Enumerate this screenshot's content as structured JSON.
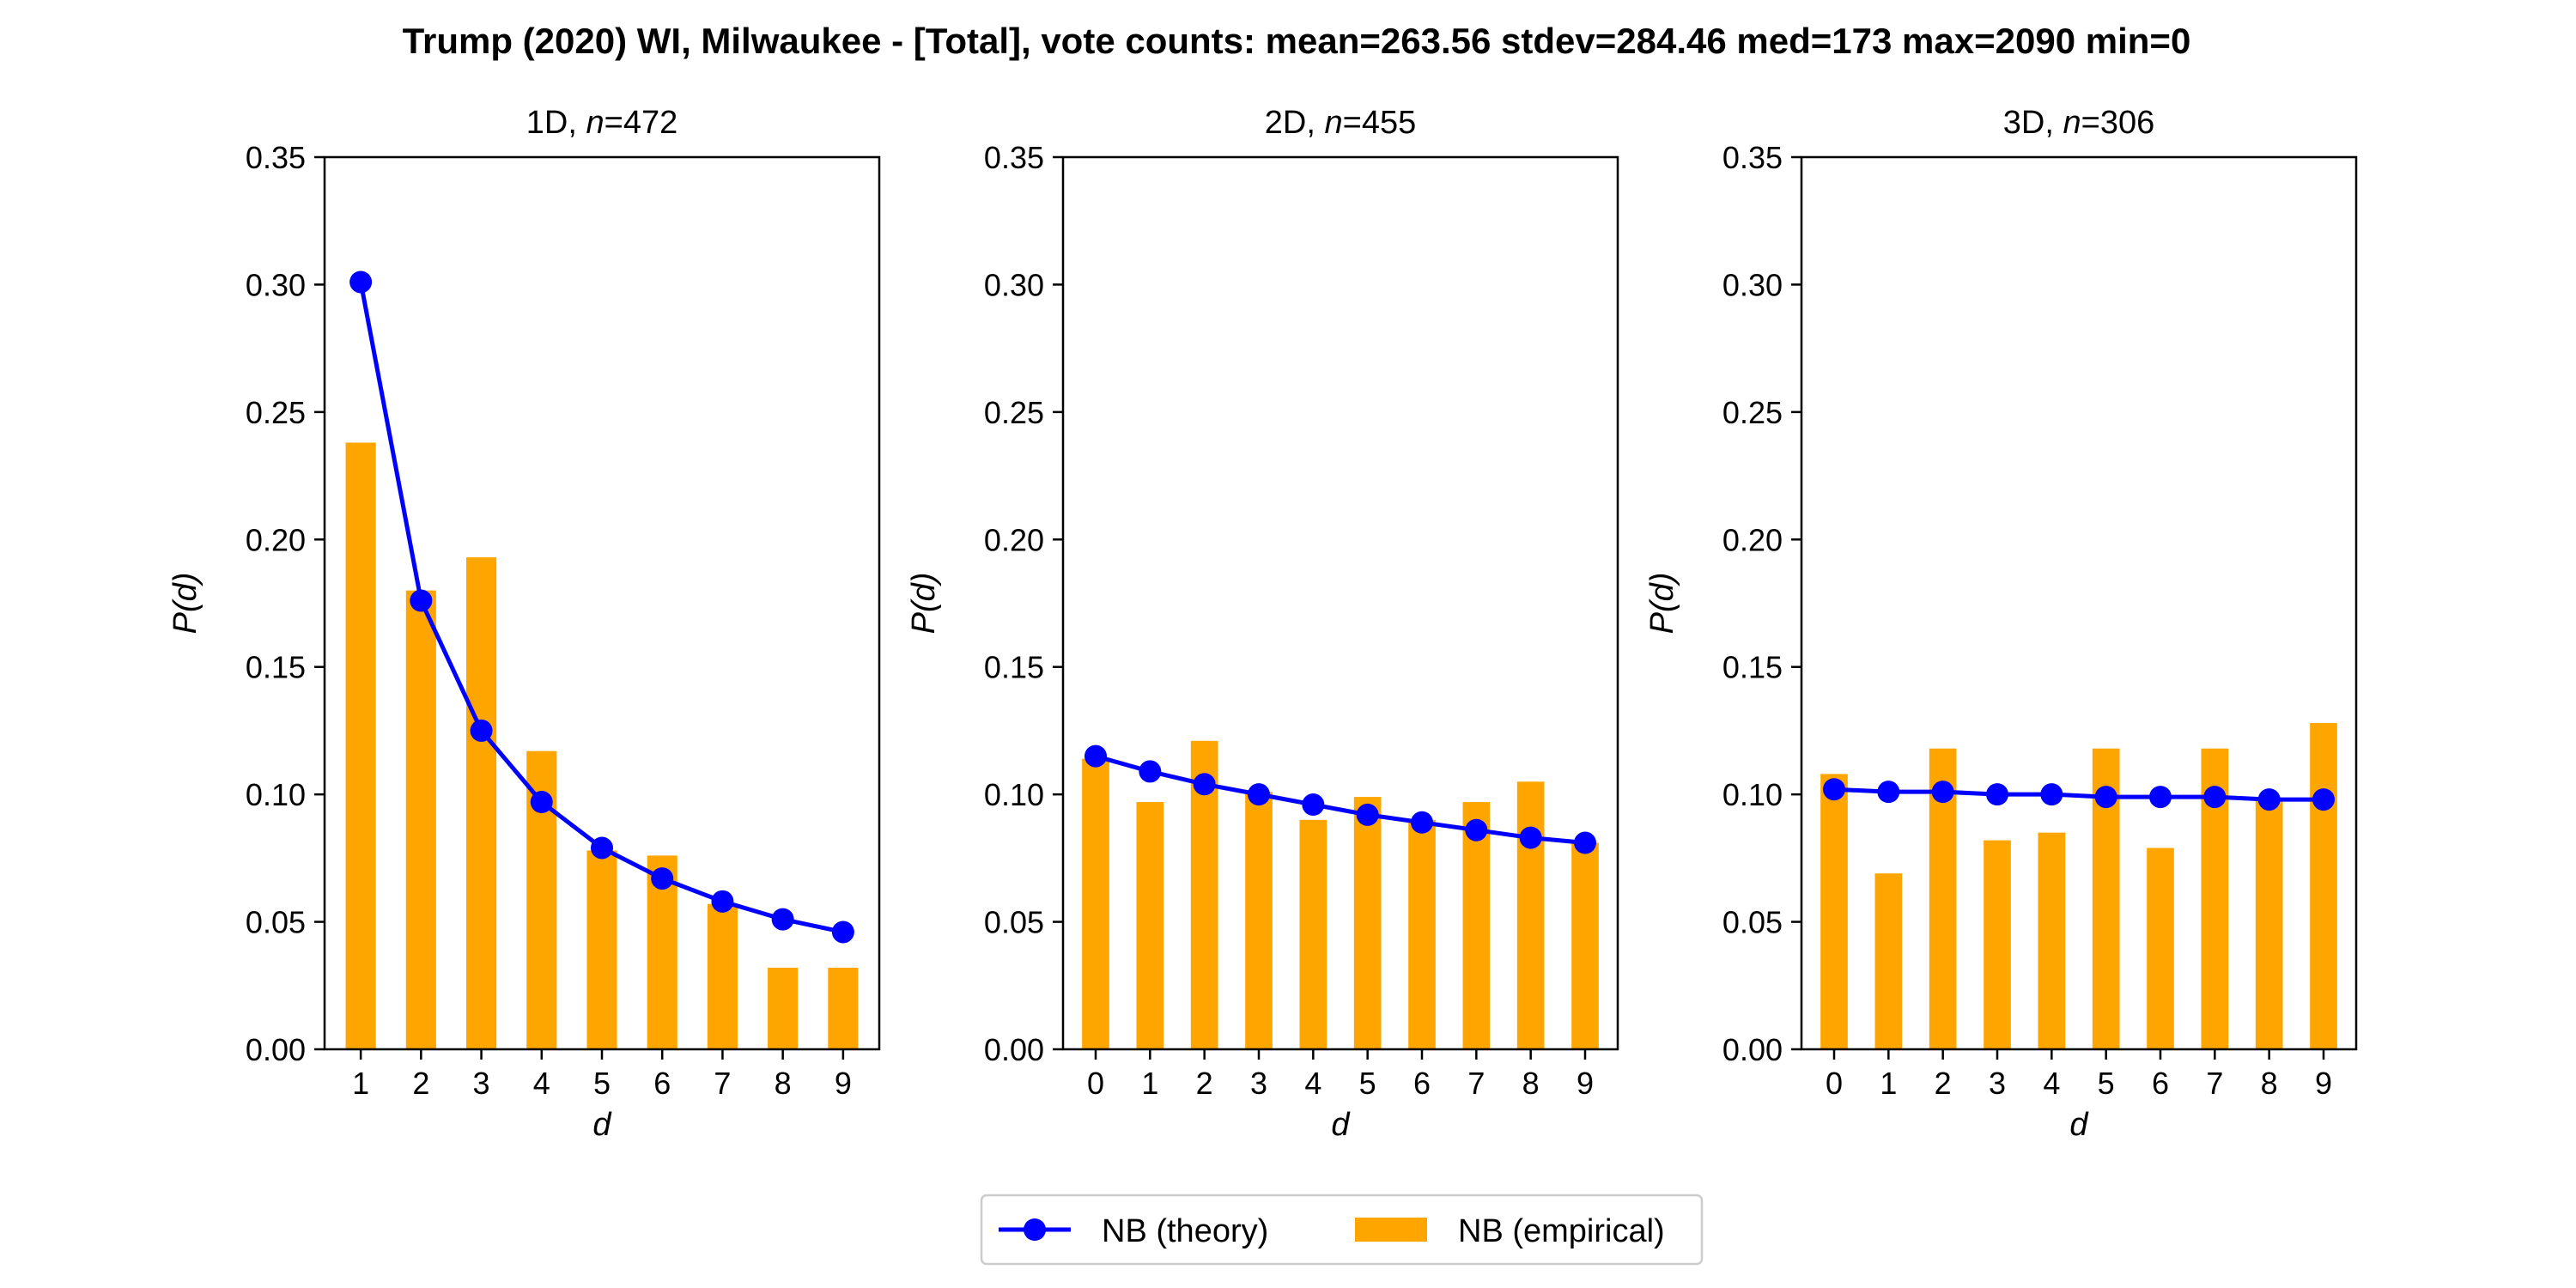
{
  "chart_data": {
    "type": "bar",
    "title": "Trump (2020) WI, Milwaukee - [Total], vote counts: mean=263.56 stdev=284.46 med=173 max=2090 min=0",
    "legend": {
      "placement": "bottom-center",
      "entries": [
        {
          "label": "NB (theory)",
          "kind": "line-marker",
          "color": "#0000ff"
        },
        {
          "label": "NB (empirical)",
          "kind": "bar",
          "color": "#ffa500"
        }
      ]
    },
    "panels": [
      {
        "title_prefix": "1D, ",
        "title_var": "n",
        "title_suffix": "=472",
        "xlabel": "d",
        "ylabel_var": "P",
        "ylabel_arg": "d",
        "ylim": [
          0,
          0.35
        ],
        "yticks": [
          "0.00",
          "0.05",
          "0.10",
          "0.15",
          "0.20",
          "0.25",
          "0.30",
          "0.35"
        ],
        "categories": [
          "1",
          "2",
          "3",
          "4",
          "5",
          "6",
          "7",
          "8",
          "9"
        ],
        "series": [
          {
            "name": "NB (empirical)",
            "type": "bar",
            "color": "#ffa500",
            "values": [
              0.238,
              0.18,
              0.193,
              0.117,
              0.078,
              0.076,
              0.057,
              0.032,
              0.032
            ]
          },
          {
            "name": "NB (theory)",
            "type": "line",
            "color": "#0000ff",
            "values": [
              0.301,
              0.176,
              0.125,
              0.097,
              0.079,
              0.067,
              0.058,
              0.051,
              0.046
            ]
          }
        ]
      },
      {
        "title_prefix": "2D, ",
        "title_var": "n",
        "title_suffix": "=455",
        "xlabel": "d",
        "ylabel_var": "P",
        "ylabel_arg": "d",
        "ylim": [
          0,
          0.35
        ],
        "yticks": [
          "0.00",
          "0.05",
          "0.10",
          "0.15",
          "0.20",
          "0.25",
          "0.30",
          "0.35"
        ],
        "categories": [
          "0",
          "1",
          "2",
          "3",
          "4",
          "5",
          "6",
          "7",
          "8",
          "9"
        ],
        "series": [
          {
            "name": "NB (empirical)",
            "type": "bar",
            "color": "#ffa500",
            "values": [
              0.114,
              0.097,
              0.121,
              0.101,
              0.09,
              0.099,
              0.09,
              0.097,
              0.105,
              0.081
            ]
          },
          {
            "name": "NB (theory)",
            "type": "line",
            "color": "#0000ff",
            "values": [
              0.115,
              0.109,
              0.104,
              0.1,
              0.096,
              0.092,
              0.089,
              0.086,
              0.083,
              0.081
            ]
          }
        ]
      },
      {
        "title_prefix": "3D, ",
        "title_var": "n",
        "title_suffix": "=306",
        "xlabel": "d",
        "ylabel_var": "P",
        "ylabel_arg": "d",
        "ylim": [
          0,
          0.35
        ],
        "yticks": [
          "0.00",
          "0.05",
          "0.10",
          "0.15",
          "0.20",
          "0.25",
          "0.30",
          "0.35"
        ],
        "categories": [
          "0",
          "1",
          "2",
          "3",
          "4",
          "5",
          "6",
          "7",
          "8",
          "9"
        ],
        "series": [
          {
            "name": "NB (empirical)",
            "type": "bar",
            "color": "#ffa500",
            "values": [
              0.108,
              0.069,
              0.118,
              0.082,
              0.085,
              0.118,
              0.079,
              0.118,
              0.098,
              0.128
            ]
          },
          {
            "name": "NB (theory)",
            "type": "line",
            "color": "#0000ff",
            "values": [
              0.102,
              0.101,
              0.101,
              0.1,
              0.1,
              0.099,
              0.099,
              0.099,
              0.098,
              0.098
            ]
          }
        ]
      }
    ]
  }
}
